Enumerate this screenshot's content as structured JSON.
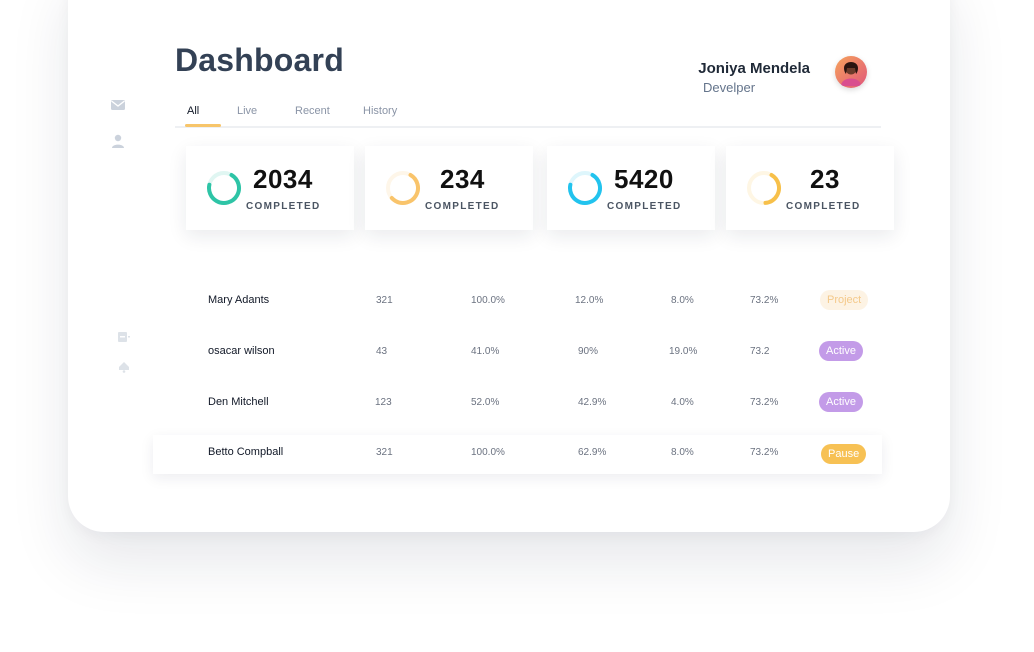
{
  "header": {
    "title": "Dashboard",
    "user_name": "Joniya Mendela",
    "user_role": "Develper"
  },
  "tabs": [
    {
      "label": "All",
      "active": true
    },
    {
      "label": "Live",
      "active": false
    },
    {
      "label": "Recent",
      "active": false
    },
    {
      "label": "History",
      "active": false
    }
  ],
  "sidebar_icons": [
    "mail-icon",
    "user-icon",
    "document-icon",
    "bell-icon"
  ],
  "stats": [
    {
      "value": "2034",
      "label": "COMPLETED",
      "color": "#2ec4a6",
      "progress": 0.7
    },
    {
      "value": "234",
      "label": "COMPLETED",
      "color": "#f9c46b",
      "progress": 0.55
    },
    {
      "value": "5420",
      "label": "COMPLETED",
      "color": "#22c3ee",
      "progress": 0.7
    },
    {
      "value": "23",
      "label": "COMPLETED",
      "color": "#f7c04a",
      "progress": 0.4
    }
  ],
  "table": {
    "rows": [
      {
        "name": "Mary Adants",
        "c1": "321",
        "c2": "100.0%",
        "c3": "12.0%",
        "c4": "8.0%",
        "c5": "73.2%",
        "status": "Project",
        "status_bg": "#fdf3e4",
        "status_fg": "#f4c98a"
      },
      {
        "name": "osacar wilson",
        "c1": "43",
        "c2": "41.0%",
        "c3": "90%",
        "c4": "19.0%",
        "c5": "73.2",
        "status": "Active",
        "status_bg": "#c39be8",
        "status_fg": "#ffffff"
      },
      {
        "name": "Den Mitchell",
        "c1": "123",
        "c2": "52.0%",
        "c3": "42.9%",
        "c4": "4.0%",
        "c5": "73.2%",
        "status": "Active",
        "status_bg": "#c39be8",
        "status_fg": "#ffffff"
      },
      {
        "name": "Betto Compball",
        "c1": "321",
        "c2": "100.0%",
        "c3": "62.9%",
        "c4": "8.0%",
        "c5": "73.2%",
        "status": "Pause",
        "status_bg": "#f7c154",
        "status_fg": "#ffffff"
      }
    ]
  }
}
